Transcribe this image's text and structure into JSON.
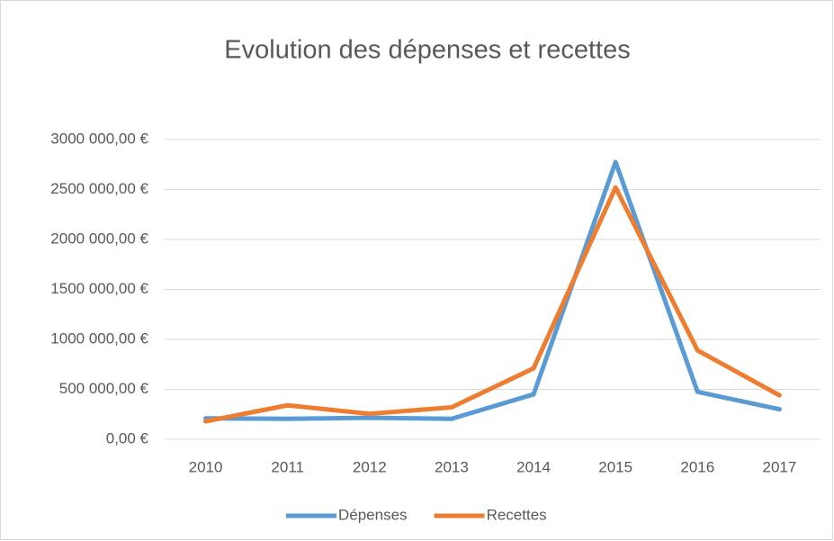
{
  "chart_data": {
    "type": "line",
    "title": "Evolution des dépenses et recettes",
    "categories": [
      "2010",
      "2011",
      "2012",
      "2013",
      "2014",
      "2015",
      "2016",
      "2017"
    ],
    "series": [
      {
        "name": "Dépenses",
        "color": "#5b9bd5",
        "values": [
          210000,
          205000,
          215000,
          205000,
          450000,
          2775000,
          475000,
          300000
        ]
      },
      {
        "name": "Recettes",
        "color": "#ed7d31",
        "values": [
          180000,
          340000,
          255000,
          320000,
          710000,
          2520000,
          890000,
          440000
        ]
      }
    ],
    "ylim": [
      0,
      3000000
    ],
    "yticks": [
      {
        "value": 0,
        "label": "0,00 €"
      },
      {
        "value": 500000,
        "label": "500 000,00 €"
      },
      {
        "value": 1000000,
        "label": "1000 000,00 €"
      },
      {
        "value": 1500000,
        "label": "1500 000,00 €"
      },
      {
        "value": 2000000,
        "label": "2000 000,00 €"
      },
      {
        "value": 2500000,
        "label": "2500 000,00 €"
      },
      {
        "value": 3000000,
        "label": "3000 000,00 €"
      }
    ],
    "grid": true,
    "legend": "bottom"
  }
}
